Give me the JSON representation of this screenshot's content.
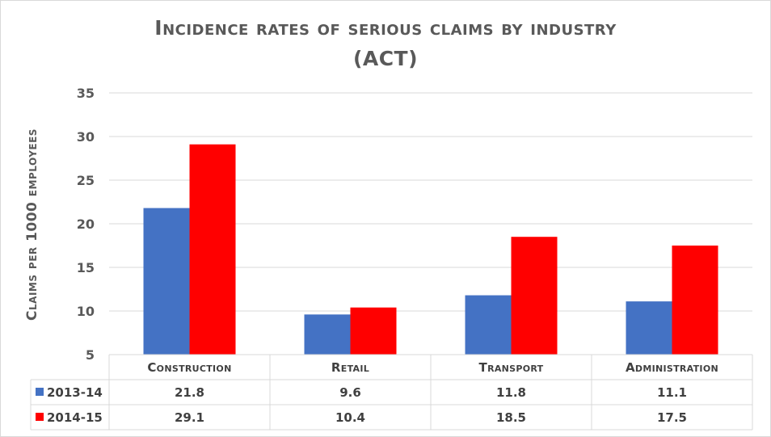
{
  "chart_data": {
    "type": "bar",
    "title": "Incidence rates of serious claims by industry",
    "title_line2": "(ACT)",
    "ylabel": "Claims per 1000 employees",
    "xlabel": "",
    "ylim": [
      5,
      35
    ],
    "yticks": [
      5,
      10,
      15,
      20,
      25,
      30,
      35
    ],
    "grid": true,
    "legend": "data-table",
    "categories": [
      "Construction",
      "Retail",
      "Transport",
      "Administration"
    ],
    "series": [
      {
        "name": "2013-14",
        "color": "#4472c4",
        "values": [
          21.8,
          9.6,
          11.8,
          11.1
        ]
      },
      {
        "name": "2014-15",
        "color": "#ff0000",
        "values": [
          29.1,
          10.4,
          18.5,
          17.5
        ]
      }
    ]
  }
}
